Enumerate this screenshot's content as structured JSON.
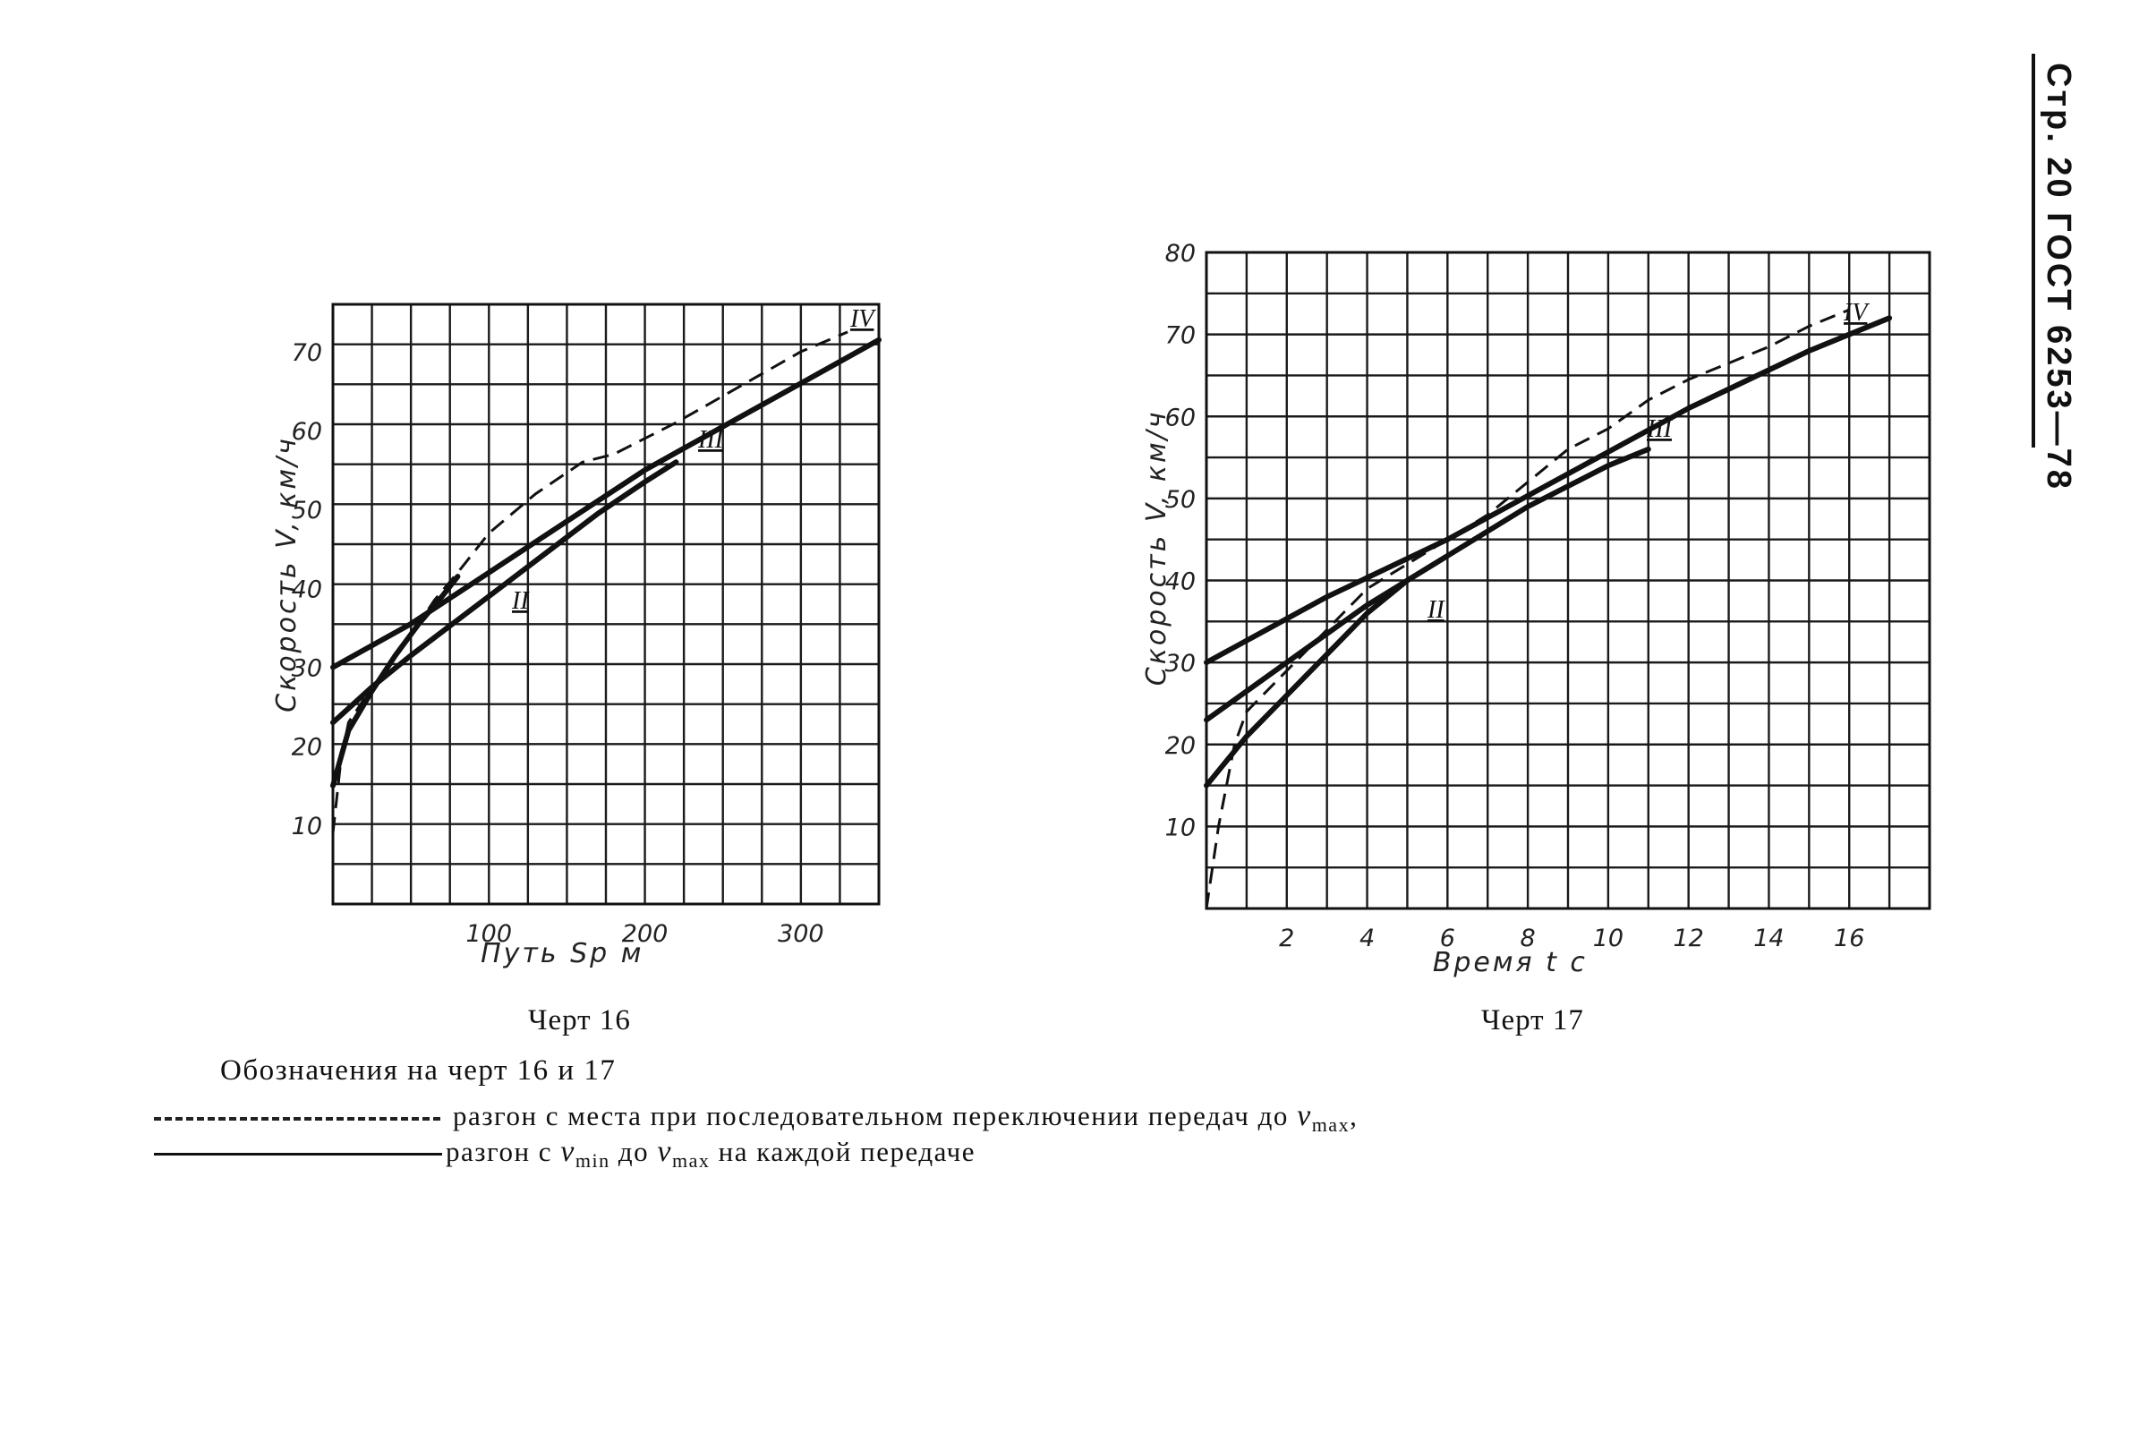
{
  "page_header": "Стр. 20 ГОСТ 6253—78",
  "legend": {
    "title": "Обозначения на черт 16 и 17",
    "dashed_text": "разгон с места при последовательном переключении передач до",
    "dashed_vmax": "max",
    "solid_text_1": "разгон с",
    "solid_vmin": "min",
    "solid_text_2": "до",
    "solid_vmax": "max",
    "solid_text_3": "на каждой передаче",
    "v_symbol": "v"
  },
  "chart_data": [
    {
      "type": "line",
      "caption": "Черт 16",
      "xlabel": "Путь Sp м",
      "ylabel": "Скорость V, км/ч",
      "xlim": [
        0,
        350
      ],
      "ylim": [
        0,
        76
      ],
      "xticks": [
        100,
        200,
        300
      ],
      "xtick_labels": [
        "100",
        "200",
        "300"
      ],
      "yticks": [
        10,
        20,
        30,
        40,
        50,
        60,
        70
      ],
      "ytick_labels": [
        "10",
        "20",
        "30",
        "40",
        "50",
        "60",
        "70"
      ],
      "grid": true,
      "series": [
        {
          "name": "II",
          "style": "solid",
          "x": [
            0,
            10,
            25,
            40,
            55,
            70,
            80
          ],
          "y": [
            15,
            22,
            27,
            31.5,
            35.5,
            39,
            41.5
          ]
        },
        {
          "name": "III",
          "style": "solid",
          "x": [
            0,
            25,
            50,
            80,
            110,
            140,
            170,
            200,
            220
          ],
          "y": [
            23,
            27.5,
            31.5,
            36,
            40.5,
            45,
            49.5,
            53.5,
            56
          ]
        },
        {
          "name": "IV",
          "style": "solid",
          "x": [
            0,
            50,
            100,
            150,
            200,
            250,
            300,
            350
          ],
          "y": [
            30,
            35.5,
            42,
            48.5,
            55,
            60.5,
            66,
            71.5
          ]
        },
        {
          "name": "",
          "style": "dashed",
          "x": [
            0,
            5,
            10,
            20,
            35,
            50,
            65,
            80,
            100,
            130,
            160,
            180,
            190,
            220,
            260,
            300,
            330
          ],
          "y": [
            9,
            18,
            23,
            26,
            30,
            34,
            38.5,
            42,
            47,
            52,
            56,
            57,
            58,
            61,
            65.5,
            70,
            72.5
          ]
        }
      ],
      "annotations": [
        "II",
        "III",
        "IV"
      ]
    },
    {
      "type": "line",
      "caption": "Черт 17",
      "xlabel": "Время t с",
      "ylabel": "Скорость V, км/ч",
      "xlim": [
        0,
        18
      ],
      "ylim": [
        0,
        80
      ],
      "xticks": [
        2,
        4,
        6,
        8,
        10,
        12,
        14,
        16
      ],
      "xtick_labels": [
        "2",
        "4",
        "6",
        "8",
        "10",
        "12",
        "14",
        "16"
      ],
      "yticks": [
        10,
        20,
        30,
        40,
        50,
        60,
        70,
        80
      ],
      "ytick_labels": [
        "10",
        "20",
        "30",
        "40",
        "50",
        "60",
        "70",
        "80"
      ],
      "grid": true,
      "series": [
        {
          "name": "II",
          "style": "solid",
          "x": [
            0,
            1,
            2,
            3,
            4,
            5,
            6
          ],
          "y": [
            15,
            21,
            26,
            31,
            36,
            40,
            43
          ]
        },
        {
          "name": "III",
          "style": "solid",
          "x": [
            0,
            2,
            4,
            6,
            8,
            10,
            11
          ],
          "y": [
            23,
            30,
            37,
            43,
            49,
            54,
            56
          ]
        },
        {
          "name": "IV",
          "style": "solid",
          "x": [
            0,
            3,
            6,
            9,
            12,
            15,
            17
          ],
          "y": [
            30,
            38,
            45,
            53,
            61,
            68,
            72
          ]
        },
        {
          "name": "",
          "style": "dashed",
          "x": [
            0,
            0.3,
            0.7,
            1,
            2,
            3,
            4,
            5,
            6,
            7,
            8,
            9,
            10,
            11,
            12,
            13,
            14,
            15,
            16
          ],
          "y": [
            0,
            10,
            20,
            24,
            29,
            34,
            39,
            42,
            45,
            48,
            52,
            56,
            58.5,
            62,
            64.5,
            66.5,
            68.5,
            71,
            73
          ]
        }
      ],
      "annotations": [
        "II",
        "III",
        "IV"
      ]
    }
  ]
}
